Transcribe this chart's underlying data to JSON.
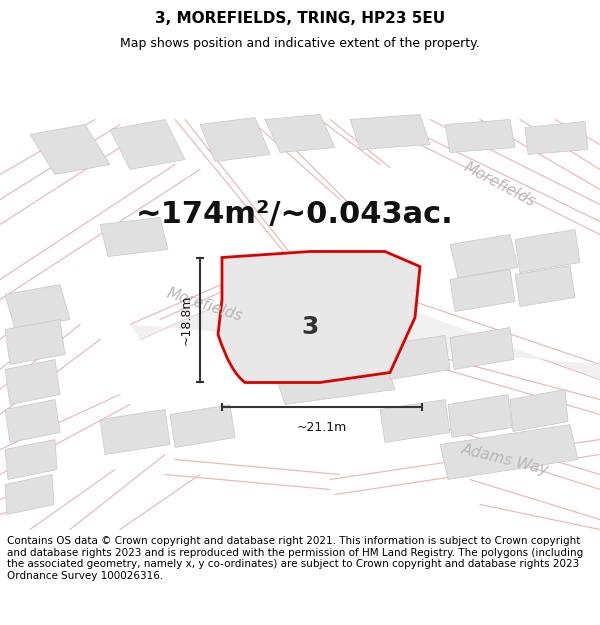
{
  "title": "3, MOREFIELDS, TRING, HP23 5EU",
  "subtitle": "Map shows position and indicative extent of the property.",
  "area_text": "~174m²/~0.043ac.",
  "label": "3",
  "dim_width": "~21.1m",
  "dim_height": "~18.8m",
  "street_morefields_center": "Morefields",
  "street_morefields_topright": "Morefields",
  "street_adams": "Adams Way",
  "footer_text": "Contains OS data © Crown copyright and database right 2021. This information is subject to Crown copyright and database rights 2023 and is reproduced with the permission of HM Land Registry. The polygons (including the associated geometry, namely x, y co-ordinates) are subject to Crown copyright and database rights 2023 Ordnance Survey 100026316.",
  "bg_color": "#f8f7f5",
  "road_color": "#e8b8b8",
  "road_edge_color": "#c8a0a0",
  "building_fill": "#e0e0e0",
  "building_edge": "#c8c8c8",
  "plot_fill": "#e8e8e8",
  "plot_stroke": "#dd0000",
  "title_fontsize": 11,
  "subtitle_fontsize": 9,
  "area_fontsize": 22,
  "label_fontsize": 18,
  "street_fontsize": 11,
  "footer_fontsize": 7.5,
  "dim_fontsize": 9
}
